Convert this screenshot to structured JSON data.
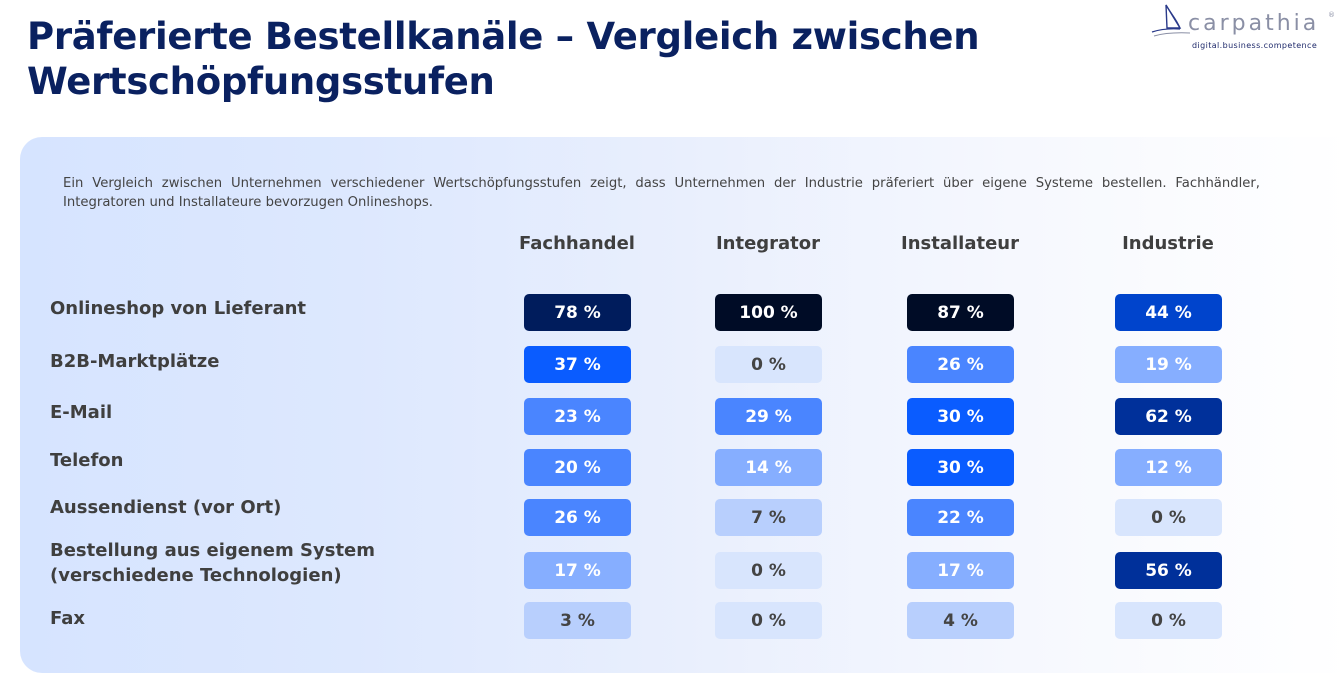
{
  "title": "Präferierte Bestellkanäle – Vergleich zwischen Wertschöpfungsstufen",
  "logo": {
    "icon": "sailboat-icon",
    "wordmark": "carpathia",
    "registered": "®",
    "tagline": "digital.business.competence"
  },
  "intro": "Ein Vergleich zwischen Unternehmen verschiedener Wertschöpfungsstufen zeigt, dass Unternehmen der Industrie präferiert über eigene Systeme bestellen. Fachhändler, Integratoren und Installateure bevorzugen Onlineshops.",
  "colors": {
    "title": "#0a2160",
    "scale": {
      "very_dark": "#000c26",
      "dark": "#001c5c",
      "navy": "#00309a",
      "strong": "#0044cc",
      "bright": "#0a5cff",
      "medium": "#4a85ff",
      "light": "#86aeff",
      "pale": "#b8cffd",
      "faint": "#d8e5fd"
    }
  },
  "table": {
    "columns": [
      "Fachhandel",
      "Integrator",
      "Installateur",
      "Industrie"
    ],
    "rows": [
      {
        "label": "Onlineshop von Lieferant",
        "values": [
          "78 %",
          "100 %",
          "87 %",
          "44 %"
        ],
        "levels": [
          "dark",
          "very_dark",
          "very_dark",
          "strong"
        ]
      },
      {
        "label": "B2B-Marktplätze",
        "values": [
          "37 %",
          "0 %",
          "26 %",
          "19 %"
        ],
        "levels": [
          "bright",
          "faint",
          "medium",
          "light"
        ]
      },
      {
        "label": "E-Mail",
        "values": [
          "23 %",
          "29 %",
          "30 %",
          "62 %"
        ],
        "levels": [
          "medium",
          "medium",
          "bright",
          "navy"
        ]
      },
      {
        "label": "Telefon",
        "values": [
          "20 %",
          "14 %",
          "30 %",
          "12 %"
        ],
        "levels": [
          "medium",
          "light",
          "bright",
          "light"
        ]
      },
      {
        "label": "Aussendienst (vor Ort)",
        "values": [
          "26 %",
          "7 %",
          "22 %",
          "0 %"
        ],
        "levels": [
          "medium",
          "pale",
          "medium",
          "faint"
        ]
      },
      {
        "label": "Bestellung aus eigenem System\n(verschiedene Technologien)",
        "values": [
          "17 %",
          "0 %",
          "17 %",
          "56 %"
        ],
        "levels": [
          "light",
          "faint",
          "light",
          "navy"
        ]
      },
      {
        "label": "Fax",
        "values": [
          "3 %",
          "0 %",
          "4 %",
          "0 %"
        ],
        "levels": [
          "pale",
          "faint",
          "pale",
          "faint"
        ]
      }
    ]
  }
}
